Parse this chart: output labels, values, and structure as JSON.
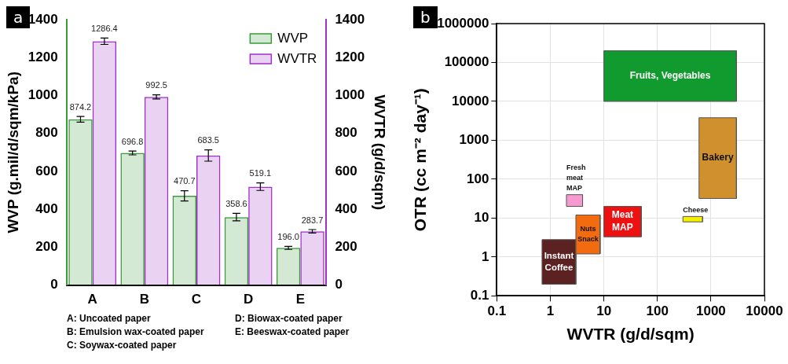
{
  "chart_data": [
    {
      "type": "bar",
      "title": "a",
      "ylabel": "WVP (g.mil/d/sqm/kPa)",
      "y2label": "WVTR (g/d/sqm)",
      "categories": [
        "A",
        "B",
        "C",
        "D",
        "E"
      ],
      "series": [
        {
          "name": "WVP",
          "color": "#3a9a3a",
          "values": [
            874.2,
            696.8,
            470.7,
            358.6,
            196.0
          ],
          "errors": [
            15,
            10,
            27,
            20,
            8
          ],
          "value_labels": [
            "874.2",
            "696.8",
            "470.7",
            "358.6",
            "196.0"
          ]
        },
        {
          "name": "WVTR",
          "color": "#a030c8",
          "axis": "y2",
          "values": [
            1286.4,
            992.5,
            683.5,
            519.1,
            283.7
          ],
          "errors": [
            17,
            11,
            30,
            20,
            9
          ],
          "value_labels": [
            "1286.4",
            "992.5",
            "683.5",
            "519.1",
            "283.7"
          ]
        }
      ],
      "ylim": [
        0,
        1400
      ],
      "yticks": [
        0,
        200,
        400,
        600,
        800,
        1000,
        1200,
        1400
      ],
      "y2lim": [
        0,
        1400
      ],
      "y2ticks": [
        0,
        200,
        400,
        600,
        800,
        1000,
        1200,
        1400
      ],
      "legend": "top right",
      "grid": false,
      "annotations": [
        "A: Uncoated paper",
        "B: Emulsion wax-coated paper",
        "C: Soywax-coated paper",
        "D: Biowax-coated paper",
        "E: Beeswax-coated paper"
      ]
    },
    {
      "type": "area",
      "title": "b",
      "xlabel": "WVTR (g/d/sqm)",
      "ylabel": "OTR (cc m⁻² day⁻¹)",
      "log": "xy",
      "grid": true,
      "xlim": [
        0.1,
        10000
      ],
      "xticks": [
        0.1,
        1,
        10,
        100,
        1000,
        10000
      ],
      "ylim": [
        0.1,
        1000000
      ],
      "yticks": [
        0.1,
        1,
        10,
        100,
        1000,
        10000,
        100000,
        1000000
      ],
      "series": [
        {
          "name": "Fruits, Vegetables",
          "color": "#119a2d",
          "x": [
            10,
            10,
            3000,
            3000,
            10
          ],
          "values": [
            10000,
            200000,
            200000,
            10000,
            10000
          ]
        },
        {
          "name": "Bakery",
          "color": "#d0902e",
          "x": [
            600,
            600,
            3000,
            3000,
            600
          ],
          "values": [
            32,
            3800,
            3800,
            32,
            32
          ]
        },
        {
          "name": "Fresh meat MAP",
          "color": "#f79ad0",
          "x": [
            2,
            2,
            4,
            4,
            2
          ],
          "values": [
            20,
            40,
            40,
            20,
            20
          ]
        },
        {
          "name": "Nuts Snack",
          "color": "#f26b0f",
          "x": [
            3,
            3,
            8.5,
            8.5,
            3
          ],
          "values": [
            1.2,
            12,
            12,
            1.2,
            1.2
          ]
        },
        {
          "name": "Meat MAP",
          "color": "#ee1111",
          "x": [
            10,
            10,
            50,
            50,
            10
          ],
          "values": [
            3.3,
            20,
            20,
            3.3,
            3.3
          ]
        },
        {
          "name": "Cheese",
          "color": "#f5f000",
          "x": [
            300,
            300,
            700,
            700,
            300
          ],
          "values": [
            8,
            11,
            11,
            8,
            8
          ]
        },
        {
          "name": "Instant Coffee",
          "color": "#5c2222",
          "x": [
            0.7,
            0.7,
            3,
            3,
            0.7
          ],
          "values": [
            0.2,
            2.8,
            2.8,
            0.2,
            0.2
          ]
        }
      ]
    }
  ]
}
